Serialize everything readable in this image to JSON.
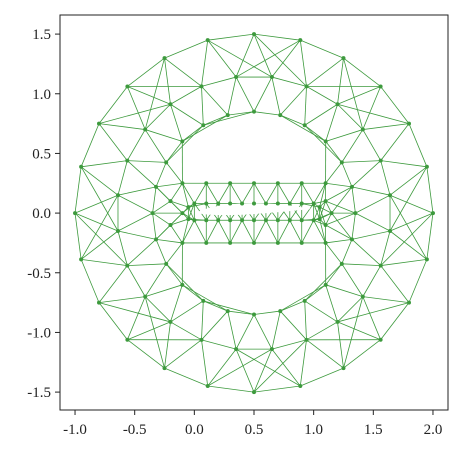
{
  "chart_data": {
    "type": "mesh",
    "color": "#3d9a3d",
    "x": [
      2.0,
      1.949,
      1.799,
      1.561,
      1.25,
      0.888,
      0.5,
      0.112,
      -0.25,
      -0.561,
      -0.799,
      -0.949,
      -1.0,
      -0.949,
      -0.799,
      -0.561,
      -0.25,
      0.112,
      0.5,
      0.888,
      1.25,
      1.561,
      1.799,
      1.949,
      1.64,
      1.562,
      1.412,
      1.2,
      0.94,
      0.65,
      0.35,
      0.06,
      -0.2,
      -0.412,
      -0.562,
      -0.64,
      1.64,
      1.562,
      1.412,
      1.2,
      0.94,
      0.65,
      0.35,
      0.06,
      -0.2,
      -0.412,
      -0.562,
      -0.64,
      1.35,
      1.321,
      1.236,
      1.101,
      0.925,
      0.72,
      0.5,
      0.28,
      0.075,
      -0.101,
      -0.236,
      -0.321,
      -0.35,
      -0.321,
      -0.236,
      -0.101,
      0.075,
      0.28,
      0.5,
      0.72,
      0.925,
      1.101,
      1.236,
      1.321,
      0.0,
      0.1,
      0.2,
      0.3,
      0.4,
      0.5,
      0.6,
      0.7,
      0.8,
      0.9,
      1.0,
      0.0,
      0.1,
      0.2,
      0.3,
      0.4,
      0.5,
      0.6,
      0.7,
      0.8,
      0.9,
      1.0,
      -0.1,
      0.1,
      0.3,
      0.5,
      0.7,
      0.9,
      1.1,
      -0.1,
      0.1,
      0.3,
      0.5,
      0.7,
      0.9,
      1.1,
      -0.1,
      -0.05,
      -0.05,
      -0.2,
      -0.2,
      1.05,
      1.05,
      1.15,
      1.1,
      1.1
    ],
    "y": [
      0,
      0.388,
      0.75,
      1.061,
      1.299,
      1.449,
      1.5,
      1.449,
      1.299,
      1.061,
      0.75,
      0.388,
      0,
      -0.388,
      -0.75,
      -1.061,
      -1.299,
      -1.449,
      -1.5,
      -1.449,
      -1.299,
      -1.061,
      -0.75,
      -0.388,
      0.15,
      0.44,
      0.7,
      0.912,
      1.062,
      1.14,
      1.14,
      1.062,
      0.912,
      0.7,
      0.44,
      0.15,
      -0.15,
      -0.44,
      -0.7,
      -0.912,
      -1.062,
      -1.14,
      -1.14,
      -1.062,
      -0.912,
      -0.7,
      -0.44,
      -0.15,
      0,
      0.22,
      0.425,
      0.601,
      0.736,
      0.821,
      0.85,
      0.821,
      0.736,
      0.601,
      0.425,
      0.22,
      0,
      -0.22,
      -0.425,
      -0.601,
      -0.736,
      -0.821,
      -0.85,
      -0.821,
      -0.736,
      -0.601,
      -0.425,
      -0.22,
      0.08,
      0.08,
      0.08,
      0.08,
      0.08,
      0.08,
      0.08,
      0.08,
      0.08,
      0.08,
      0.08,
      -0.06,
      -0.06,
      -0.06,
      -0.06,
      -0.06,
      -0.06,
      -0.06,
      -0.06,
      -0.06,
      -0.06,
      -0.06,
      0.25,
      0.25,
      0.25,
      0.25,
      0.25,
      0.25,
      0.25,
      -0.25,
      -0.25,
      -0.25,
      -0.25,
      -0.25,
      -0.25,
      -0.25,
      0,
      0.05,
      -0.05,
      0.1,
      -0.1,
      0.05,
      -0.05,
      0,
      0.1,
      -0.1
    ],
    "xlim": [
      -1.126,
      2.126
    ],
    "ylim": [
      -1.65,
      1.66
    ],
    "xticks": [
      {
        "value": -1.0,
        "label": "-1.0"
      },
      {
        "value": -0.5,
        "label": "-0.5"
      },
      {
        "value": 0.0,
        "label": "0.0"
      },
      {
        "value": 0.5,
        "label": "0.5"
      },
      {
        "value": 1.0,
        "label": "1.0"
      },
      {
        "value": 1.5,
        "label": "1.5"
      },
      {
        "value": 2.0,
        "label": "2.0"
      }
    ],
    "yticks": [
      {
        "value": -1.5,
        "label": "-1.5"
      },
      {
        "value": -1.0,
        "label": "-1.0"
      },
      {
        "value": -0.5,
        "label": "-0.5"
      },
      {
        "value": 0.0,
        "label": "0.0"
      },
      {
        "value": 0.5,
        "label": "0.5"
      },
      {
        "value": 1.0,
        "label": "1.0"
      },
      {
        "value": 1.5,
        "label": "1.5"
      }
    ]
  }
}
